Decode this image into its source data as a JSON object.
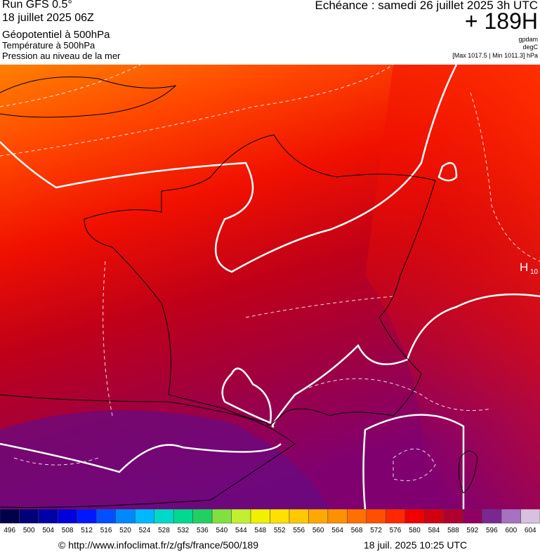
{
  "header": {
    "run": "Run GFS 0.5°",
    "date": "18 juillet 2025 06Z",
    "field1": "Géopotentiel à 500hPa",
    "field2": "Température à 500hPa",
    "field3": "Pression au niveau de la mer",
    "echeance": "Echéance : samedi 26 juillet 2025 3h UTC",
    "offset": "+ 189H",
    "unit1": "gpdam",
    "unit2": "degC",
    "pressure": "[Max 1017.5 | Min 1011.3] hPa"
  },
  "map": {
    "high_label": "H",
    "high_value": "10"
  },
  "legend": {
    "values": [
      496,
      500,
      504,
      508,
      512,
      516,
      520,
      524,
      528,
      532,
      536,
      540,
      544,
      548,
      552,
      556,
      560,
      564,
      568,
      572,
      576,
      580,
      584,
      588,
      592,
      596,
      600,
      604
    ],
    "colors": [
      "#00004a",
      "#000078",
      "#0000a8",
      "#0000dc",
      "#0018ff",
      "#0050ff",
      "#0088ff",
      "#00b8ff",
      "#00d8c8",
      "#00d890",
      "#20d060",
      "#80e040",
      "#c0f030",
      "#f0f000",
      "#ffe000",
      "#ffc800",
      "#ffa800",
      "#ff9000",
      "#ff7000",
      "#ff5000",
      "#ff2800",
      "#f00000",
      "#d00010",
      "#b00030",
      "#900060",
      "#7a2890",
      "#a870c0",
      "#d8c0e0"
    ]
  },
  "footer": {
    "source": "© http://www.infoclimat.fr/z/gfs/france/500/189",
    "generated": "18 juil. 2025 10:25 UTC"
  }
}
